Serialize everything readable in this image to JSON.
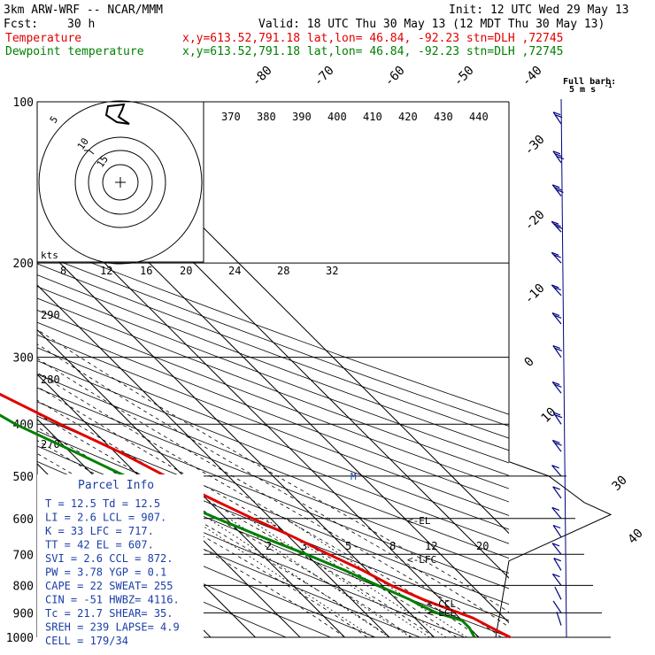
{
  "header": {
    "model": "3km ARW-WRF -- NCAR/MMM",
    "init": "Init: 12 UTC Wed 29 May 13",
    "fcst_label": "Fcst:",
    "fcst_value": "30 h",
    "valid": "Valid: 18 UTC Thu 30 May 13 (12 MDT Thu 30 May 13)",
    "temp_label": "Temperature",
    "temp_info": "x,y=613.52,791.18  lat,lon= 46.84, -92.23  stn=DLH ,72745",
    "dew_label": "Dewpoint temperature",
    "dew_info": "x,y=613.52,791.18  lat,lon= 46.84, -92.23  stn=DLH ,72745",
    "barb_legend_1": "Full barb:",
    "barb_legend_2": "5 m s",
    "barb_legend_exp": "-1"
  },
  "colors": {
    "temperature": "#e00000",
    "dewpoint": "#008000",
    "wind": "#000080"
  },
  "parcel": {
    "title": "Parcel Info",
    "rows": [
      "T  =   12.5  Td =  12.5",
      "LI =    2.6  LCL =  907.",
      "K  =     33  LFC =  717.",
      "TT =     42  EL  =  607.",
      "SVI =   2.6  CCL =  872.",
      "PW =   3.78  YGP =   0.1",
      "CAPE =   22  SWEAT=  255",
      "CIN =   -51  HWBZ= 4116.",
      "Tc =   21.7  SHEAR=  35.",
      "SREH =  239  LAPSE=  4.9",
      "CELL = 179/34"
    ]
  },
  "hodograph": {
    "units": "kts",
    "ring_labels": [
      "5",
      "10",
      "15"
    ]
  },
  "chart_data": {
    "type": "line",
    "subtype": "skew-T log-P sounding",
    "pressure_levels": [
      "100",
      "200",
      "300",
      "400",
      "500",
      "600",
      "700",
      "800",
      "900",
      "1000"
    ],
    "isotherm_labels": [
      "-80",
      "-70",
      "-60",
      "-50",
      "-40",
      "-30",
      "-20",
      "-10",
      "0",
      "10",
      "30",
      "40"
    ],
    "theta_labels": [
      "370",
      "380",
      "390",
      "400",
      "410",
      "420",
      "430",
      "440"
    ],
    "theta_labels_low": [
      "290",
      "280",
      "270"
    ],
    "mixing_ratio_labels_upper": [
      "8",
      "12",
      "16",
      "20",
      "24",
      "28",
      "32"
    ],
    "mixing_ratio_labels_lower": [
      "2",
      "3",
      "5",
      "8",
      "12",
      "20"
    ],
    "markers": [
      "<-EL",
      "<-LFC",
      "<-CCL",
      "<-LCL"
    ],
    "trop_marker": "M",
    "series": [
      {
        "name": "Temperature",
        "color": "#e00000",
        "points": [
          [
            100,
            -59
          ],
          [
            120,
            -60
          ],
          [
            150,
            -61
          ],
          [
            175,
            -62
          ],
          [
            200,
            -60
          ],
          [
            230,
            -56
          ],
          [
            270,
            -49
          ],
          [
            300,
            -43
          ],
          [
            350,
            -33
          ],
          [
            400,
            -26
          ],
          [
            450,
            -19
          ],
          [
            500,
            -14
          ],
          [
            550,
            -9
          ],
          [
            600,
            -4
          ],
          [
            650,
            1
          ],
          [
            700,
            5
          ],
          [
            750,
            9
          ],
          [
            800,
            12
          ],
          [
            850,
            16
          ],
          [
            870,
            18
          ],
          [
            900,
            21
          ],
          [
            920,
            23
          ],
          [
            960,
            25
          ],
          [
            1000,
            27
          ]
        ]
      },
      {
        "name": "Dewpoint temperature",
        "color": "#008000",
        "points": [
          [
            100,
            -78
          ],
          [
            120,
            -74
          ],
          [
            150,
            -68
          ],
          [
            175,
            -67
          ],
          [
            200,
            -69
          ],
          [
            240,
            -67
          ],
          [
            270,
            -58
          ],
          [
            300,
            -50
          ],
          [
            350,
            -41
          ],
          [
            400,
            -36
          ],
          [
            450,
            -29
          ],
          [
            500,
            -23
          ],
          [
            550,
            -18
          ],
          [
            600,
            -12
          ],
          [
            650,
            -6
          ],
          [
            700,
            0
          ],
          [
            750,
            5
          ],
          [
            800,
            9
          ],
          [
            850,
            13
          ],
          [
            870,
            14
          ],
          [
            900,
            16
          ],
          [
            930,
            20
          ],
          [
            960,
            20
          ],
          [
            1000,
            19
          ]
        ]
      }
    ],
    "winds": [
      {
        "p": 110,
        "u": -8,
        "v": 12
      },
      {
        "p": 130,
        "u": -9,
        "v": 13
      },
      {
        "p": 150,
        "u": -10,
        "v": 13
      },
      {
        "p": 175,
        "u": -11,
        "v": 12
      },
      {
        "p": 200,
        "u": -10,
        "v": 11
      },
      {
        "p": 230,
        "u": -9,
        "v": 10
      },
      {
        "p": 260,
        "u": -8,
        "v": 10
      },
      {
        "p": 300,
        "u": -7,
        "v": 10
      },
      {
        "p": 350,
        "u": -7,
        "v": 9
      },
      {
        "p": 400,
        "u": -6,
        "v": 9
      },
      {
        "p": 450,
        "u": -6,
        "v": 8
      },
      {
        "p": 500,
        "u": -6,
        "v": 7
      },
      {
        "p": 550,
        "u": -5,
        "v": 7
      },
      {
        "p": 600,
        "u": -5,
        "v": 6
      },
      {
        "p": 650,
        "u": -4,
        "v": 6
      },
      {
        "p": 700,
        "u": -4,
        "v": 5
      },
      {
        "p": 750,
        "u": -3,
        "v": 5
      },
      {
        "p": 800,
        "u": -3,
        "v": 4
      },
      {
        "p": 850,
        "u": -2,
        "v": 4
      },
      {
        "p": 900,
        "u": -2,
        "v": 3
      },
      {
        "p": 950,
        "u": -1,
        "v": 3
      }
    ]
  }
}
